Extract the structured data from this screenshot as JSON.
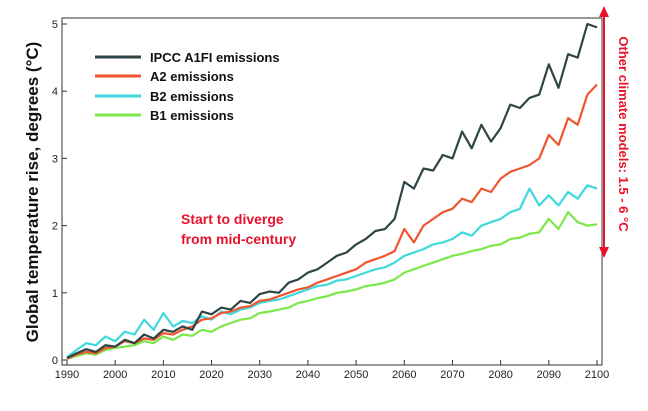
{
  "chart_data": {
    "type": "line",
    "title": "",
    "xlabel": "",
    "ylabel": "Global temperature rise, degrees (°C)",
    "xlim": [
      1990,
      2100
    ],
    "ylim": [
      0,
      5
    ],
    "xticks": [
      1990,
      2000,
      2010,
      2020,
      2030,
      2040,
      2050,
      2060,
      2070,
      2080,
      2090,
      2100
    ],
    "yticks": [
      0,
      1,
      2,
      3,
      4,
      5
    ],
    "x": [
      1990,
      1992,
      1994,
      1996,
      1998,
      2000,
      2002,
      2004,
      2006,
      2008,
      2010,
      2012,
      2014,
      2016,
      2018,
      2020,
      2022,
      2024,
      2026,
      2028,
      2030,
      2032,
      2034,
      2036,
      2038,
      2040,
      2042,
      2044,
      2046,
      2048,
      2050,
      2052,
      2054,
      2056,
      2058,
      2060,
      2062,
      2064,
      2066,
      2068,
      2070,
      2072,
      2074,
      2076,
      2078,
      2080,
      2082,
      2084,
      2086,
      2088,
      2090,
      2092,
      2094,
      2096,
      2098,
      2100
    ],
    "series": [
      {
        "name": "IPCC A1FI emissions",
        "color": "#2f4545",
        "values": [
          0.03,
          0.1,
          0.16,
          0.12,
          0.22,
          0.2,
          0.3,
          0.25,
          0.38,
          0.32,
          0.45,
          0.42,
          0.5,
          0.45,
          0.72,
          0.68,
          0.78,
          0.75,
          0.88,
          0.85,
          0.98,
          1.02,
          1.0,
          1.15,
          1.2,
          1.3,
          1.35,
          1.45,
          1.55,
          1.6,
          1.72,
          1.8,
          1.92,
          1.95,
          2.1,
          2.65,
          2.55,
          2.85,
          2.82,
          3.05,
          3.0,
          3.4,
          3.15,
          3.5,
          3.25,
          3.45,
          3.8,
          3.75,
          3.9,
          3.95,
          4.4,
          4.05,
          4.55,
          4.5,
          5.0,
          4.95
        ]
      },
      {
        "name": "A2 emissions",
        "color": "#ee5530",
        "values": [
          0.02,
          0.08,
          0.12,
          0.1,
          0.18,
          0.2,
          0.28,
          0.25,
          0.32,
          0.3,
          0.4,
          0.38,
          0.45,
          0.5,
          0.6,
          0.62,
          0.7,
          0.72,
          0.78,
          0.8,
          0.88,
          0.9,
          0.95,
          1.0,
          1.05,
          1.08,
          1.15,
          1.2,
          1.25,
          1.3,
          1.35,
          1.45,
          1.5,
          1.55,
          1.62,
          1.95,
          1.75,
          2.0,
          2.1,
          2.2,
          2.25,
          2.4,
          2.35,
          2.55,
          2.5,
          2.7,
          2.8,
          2.85,
          2.9,
          3.0,
          3.35,
          3.2,
          3.6,
          3.5,
          3.95,
          4.1
        ]
      },
      {
        "name": "B2 emissions",
        "color": "#3fd8dc",
        "values": [
          0.04,
          0.15,
          0.25,
          0.22,
          0.35,
          0.28,
          0.42,
          0.38,
          0.6,
          0.45,
          0.7,
          0.5,
          0.58,
          0.55,
          0.65,
          0.6,
          0.72,
          0.68,
          0.75,
          0.78,
          0.85,
          0.88,
          0.9,
          0.95,
          1.0,
          1.05,
          1.1,
          1.12,
          1.18,
          1.2,
          1.25,
          1.3,
          1.35,
          1.38,
          1.45,
          1.55,
          1.6,
          1.65,
          1.72,
          1.75,
          1.8,
          1.9,
          1.85,
          2.0,
          2.05,
          2.1,
          2.2,
          2.25,
          2.55,
          2.3,
          2.45,
          2.3,
          2.5,
          2.4,
          2.6,
          2.55
        ]
      },
      {
        "name": "B1 emissions",
        "color": "#7be84a",
        "values": [
          0.02,
          0.06,
          0.1,
          0.08,
          0.15,
          0.18,
          0.2,
          0.22,
          0.28,
          0.25,
          0.35,
          0.3,
          0.38,
          0.36,
          0.45,
          0.42,
          0.5,
          0.55,
          0.6,
          0.62,
          0.7,
          0.72,
          0.75,
          0.78,
          0.85,
          0.88,
          0.92,
          0.95,
          1.0,
          1.02,
          1.05,
          1.1,
          1.12,
          1.15,
          1.2,
          1.3,
          1.35,
          1.4,
          1.45,
          1.5,
          1.55,
          1.58,
          1.62,
          1.65,
          1.7,
          1.72,
          1.8,
          1.82,
          1.88,
          1.9,
          2.1,
          1.95,
          2.2,
          2.05,
          2.0,
          2.02
        ]
      }
    ],
    "annotations": {
      "diverge_line1": "Start to diverge",
      "diverge_line2": "from mid-century",
      "side_range": "Other climate models: 1.5 - 6 °C",
      "color": "#e8122a"
    },
    "legend_position": "top-left",
    "grid": false
  }
}
